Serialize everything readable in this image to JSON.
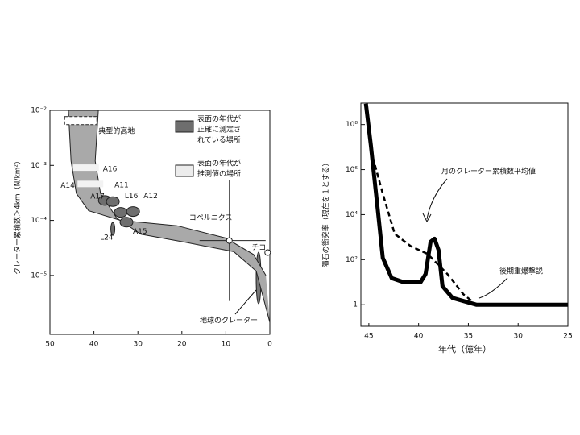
{
  "chart_data": [
    {
      "type": "band",
      "y_label": "クレーター累積数＞4km（N/km²）",
      "xlim": [
        50,
        0
      ],
      "xticks": [
        50,
        40,
        30,
        20,
        10,
        0
      ],
      "ylim": [
        8.5e-07,
        0.01
      ],
      "log_y": true,
      "yticks": [
        {
          "value": 0.01,
          "label": "10⁻²"
        },
        {
          "value": 0.001,
          "label": "10⁻³"
        },
        {
          "value": 0.0001,
          "label": "10⁻⁴"
        },
        {
          "value": 1e-05,
          "label": "10⁻⁵"
        }
      ],
      "color": "#a9a9a9",
      "series": [
        {
          "x": [
            45.8,
            45.2,
            44.0,
            41.2,
            33.9,
            21.1,
            10.1,
            3.7,
            0.9
          ],
          "values": [
            0.01,
            0.0012,
            0.00031,
            0.00015,
            0.0001,
            8e-05,
            4.8e-05,
            2.4e-05,
            1e-05
          ]
        },
        {
          "x": [
            39,
            39.7,
            38.5,
            34.8,
            29.3,
            19.2,
            8.2,
            3.1,
            0
          ],
          "values": [
            0.01,
            0.0012,
            0.00031,
            0.00011,
            5.6e-05,
            4e-05,
            2.7e-05,
            1.2e-05,
            1.4e-06
          ]
        }
      ],
      "points": [
        {
          "label": "典型的高地",
          "x": 43,
          "y": 0.0065,
          "marker": "box",
          "color": "#ffffff"
        },
        {
          "label": "A16",
          "x": 41.8,
          "y": 0.00091,
          "marker": "bar",
          "color": "#f2f2f2"
        },
        {
          "label": "A14",
          "x": 40.8,
          "y": 0.00046,
          "marker": "bar",
          "color": "#f2f2f2"
        },
        {
          "label": "A17",
          "x": 37.5,
          "y": 0.00023,
          "marker": "blob",
          "color": "#6e6e6e"
        },
        {
          "label": "A11",
          "x": 35.7,
          "y": 0.00022,
          "marker": "blob",
          "color": "#6e6e6e"
        },
        {
          "label": "L16",
          "x": 33.9,
          "y": 0.00014,
          "marker": "blob",
          "color": "#6e6e6e"
        },
        {
          "label": "A12",
          "x": 31.1,
          "y": 0.000145,
          "marker": "blob",
          "color": "#6e6e6e"
        },
        {
          "label": "A15",
          "x": 32.6,
          "y": 9.3e-05,
          "marker": "blob",
          "color": "#6e6e6e"
        },
        {
          "label": "L24",
          "x": 35.7,
          "y": 7e-05,
          "marker": "tick",
          "color": "#6e6e6e"
        },
        {
          "label": "コペルニクス",
          "x": 9.2,
          "y": 4.3e-05,
          "marker": "cross",
          "color": "#ffffff"
        },
        {
          "label": "チコ",
          "x": 0.5,
          "y": 2.6e-05,
          "marker": "circle",
          "color": "#ffffff"
        }
      ],
      "annotations": [
        "地球のクレーター"
      ],
      "legend": [
        {
          "lines": [
            "表面の年代が",
            "正確に測定さ",
            "れている場所"
          ],
          "color": "#6e6e6e"
        },
        {
          "lines": [
            "表面の年代が",
            "推測値の場所"
          ],
          "color": "#ececec"
        }
      ]
    },
    {
      "type": "line",
      "x_label": "年代（億年）",
      "y_label": "隕石の衝突率（現在を１とする）",
      "xlim": [
        45.8,
        25
      ],
      "xticks": [
        45,
        40,
        35,
        30,
        25
      ],
      "ylim": [
        0.11,
        900000000
      ],
      "log_y": true,
      "yticks": [
        {
          "value": 100000000,
          "label": "10⁸"
        },
        {
          "value": 1000000,
          "label": "10⁶"
        },
        {
          "value": 10000,
          "label": "10⁴"
        },
        {
          "value": 100,
          "label": "10²"
        },
        1
      ],
      "series": [
        {
          "x": [
            45.3,
            44.8,
            44.1,
            43.6,
            42.7,
            41.5,
            39.8,
            39.3,
            38.8,
            38.4,
            38.0,
            37.6,
            36.6,
            34.2,
            25
          ],
          "values": [
            850000000,
            12000000,
            16000,
            120,
            15,
            10,
            10,
            23,
            620,
            850,
            270,
            6.6,
            2,
            1,
            1
          ],
          "color": "#000000",
          "dash": false
        },
        {
          "x": [
            44.6,
            43.6,
            42.4,
            40.8,
            39.1,
            37.1,
            35.5,
            34.2
          ],
          "values": [
            3500000,
            85000,
            1400,
            400,
            180,
            23,
            2.9,
            1
          ],
          "color": "#000000",
          "dash": true
        }
      ],
      "annotations": [
        "月のクレーター累積数平均値",
        "後期重爆撃説"
      ]
    }
  ]
}
